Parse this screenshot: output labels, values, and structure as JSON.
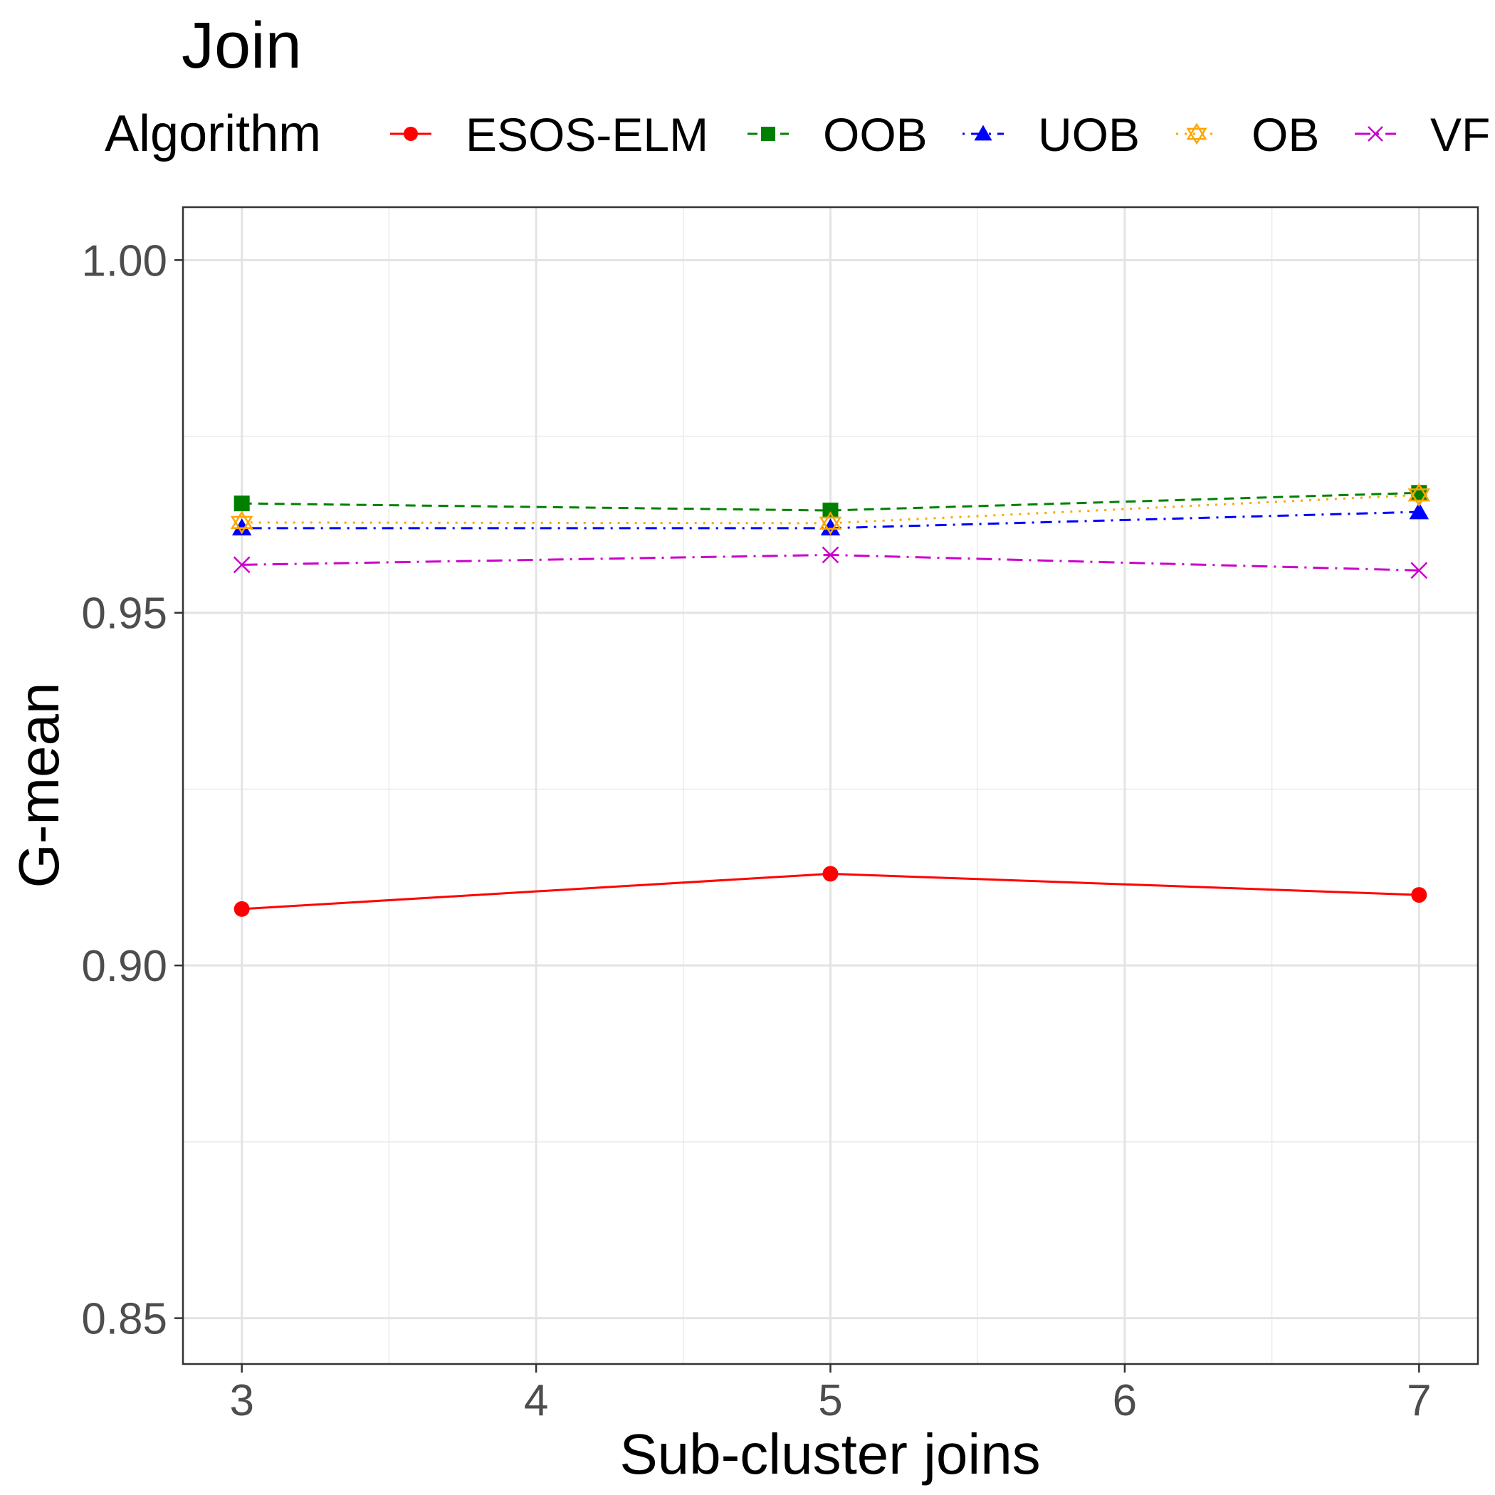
{
  "chart_data": {
    "type": "line",
    "title": "Join",
    "xlabel": "Sub-cluster joins",
    "ylabel": "G-mean",
    "legend_title": "Algorithm",
    "legend_position": "top",
    "grid": true,
    "x": [
      3,
      5,
      7
    ],
    "xlim": [
      2.8,
      7.2
    ],
    "ylim": [
      0.8435,
      1.0075
    ],
    "x_ticks": [
      3,
      4,
      5,
      6,
      7
    ],
    "y_ticks": [
      0.85,
      0.9,
      0.95,
      1.0
    ],
    "x_tick_labels": [
      "3",
      "4",
      "5",
      "6",
      "7"
    ],
    "y_tick_labels": [
      "0.85",
      "0.90",
      "0.95",
      "1.00"
    ],
    "series": [
      {
        "name": "ESOS-ELM",
        "color": "#ff0000",
        "dash": "solid",
        "marker": "circle",
        "values": [
          0.908,
          0.913,
          0.91
        ]
      },
      {
        "name": "OOB",
        "color": "#008000",
        "dash": "dashed",
        "marker": "square",
        "values": [
          0.9655,
          0.9645,
          0.967
        ]
      },
      {
        "name": "UOB",
        "color": "#0000ff",
        "dash": "dotdash",
        "marker": "triangle",
        "values": [
          0.962,
          0.962,
          0.9643
        ]
      },
      {
        "name": "OB",
        "color": "#ffa500",
        "dash": "dotted",
        "marker": "star-of-david",
        "values": [
          0.9628,
          0.9627,
          0.9667
        ]
      },
      {
        "name": "VF",
        "color": "#cc00cc",
        "dash": "longdash-dot",
        "marker": "x",
        "values": [
          0.9568,
          0.9582,
          0.956
        ]
      }
    ]
  }
}
